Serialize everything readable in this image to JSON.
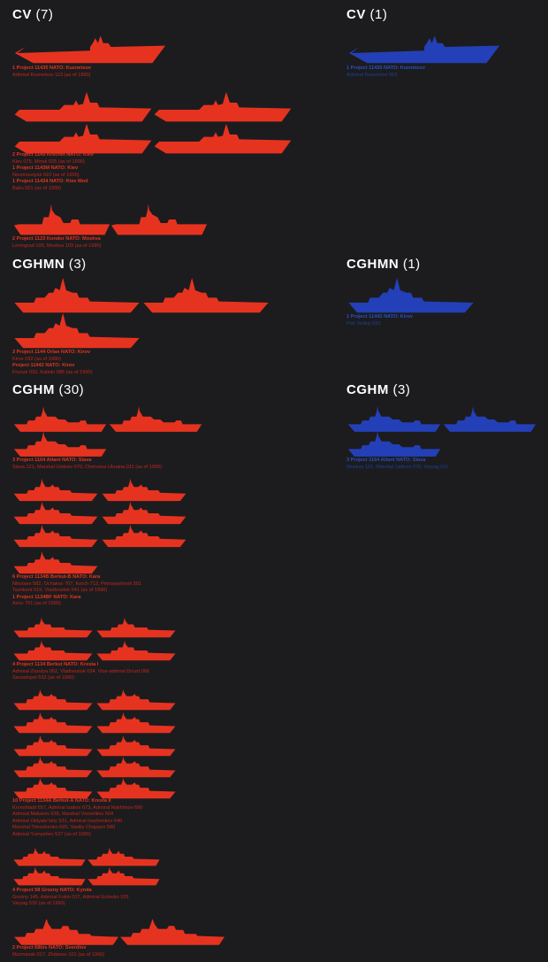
{
  "colors": {
    "background": "#1c1c1e",
    "russia_red": "#e63320",
    "ukraine_blue": "#2440b8",
    "heading": "#ffffff"
  },
  "sections": {
    "cv": {
      "red": {
        "code": "CV",
        "count": "(7)"
      },
      "blue": {
        "code": "CV",
        "count": "(1)"
      }
    },
    "cghmn": {
      "red": {
        "code": "CGHMN",
        "count": "(3)"
      },
      "blue": {
        "code": "CGHMN",
        "count": "(1)"
      }
    },
    "cghm": {
      "red": {
        "code": "CGHM",
        "count": "(30)"
      },
      "blue": {
        "code": "CGHM",
        "count": "(3)"
      }
    }
  },
  "captions": {
    "cv_kuznetsov_red": [
      "1 Project 11435 NATO: Kuznetsov",
      "Admiral Kuznetsov 113 (as of 1990)"
    ],
    "cv_kuznetsov_blue": [
      "1 Project 11435 NATO: Kuznetsov",
      "Admiral Kuznetsov 063"
    ],
    "cv_kiev": [
      "2 Project 1143 Krechet NATO: Kiev",
      "Kiev 075, Minsk 025 (as of 1990)",
      "1 Project 1143M NATO: Kiev",
      "Novorossiysk 010 (as of 1990)",
      "1 Project 11434 NATO: Kiev Mod",
      "Baku 001 (as of 1990)"
    ],
    "cv_moskva": [
      "2 Project 1123 Kondor NATO: Moskva",
      "Leningrad 106, Moskva 103 (as of 1990)"
    ],
    "cghmn_red": [
      "3 Project 1144 Orlan NATO: Kirov",
      "Kirov 092 (as of 1990)",
      "Project 11442 NATO: Kirov",
      "Frunze 010, Kalinin 085 (as of 1990)"
    ],
    "cghmn_blue": [
      "1 Project 11442 NATO: Kirov",
      "Petr Velikiy 099"
    ],
    "cghm_slava_red": [
      "3 Project 1164 Atlant NATO: Slava",
      "Slava 121, Marshal Ustinov 070, Chervona Ukraina 011 (as of 1990)"
    ],
    "cghm_slava_blue": [
      "3 Project 1164 Atlant NATO: Slava",
      "Moskva 121, Marshal Ustinov 070, Varyag 011"
    ],
    "cghm_kara": [
      "6 Project 1134B Berkut-B NATO: Kara",
      "Nikolaev 582, Ochakov 707, Kerch 713, Petropavlovsk 501",
      "Tashkent 519, Vladivostok 541 (as of 1990)",
      "1 Project 1134BF NATO: Kara",
      "Azov 701 (as of 1990)"
    ],
    "cghm_kresta1": [
      "4 Project 1134 Berkut NATO: Kresta I",
      "Admiral Zozulya 052, Vladivostok 034, Vice-admiral Drozd 066",
      "Sevastopol 532 (as of 1990)"
    ],
    "cghm_kresta2": [
      "10 Project 1134A Berkut-A NATO: Kresta II",
      "Kronshtadt 657, Admiral Isakov 673, Admiral Nakhimov 690",
      "Admiral Makarov 635, Marshal Voroshilov 504",
      "Admiral Oktyabr'skiy 531, Admiral Isachenkov 640",
      "Marshal Timoshenko 695, Vasiliy Chapaev 580",
      "Admiral Yumashev 527 (as of 1990)"
    ],
    "cghm_kynda": [
      "4 Project 58 Grozny NATO: Kynda",
      "Grozny 145, Admiral Fokin 017, Admiral Golovko 105",
      "Varyag 532 (as of 1990)"
    ],
    "cghm_sverdlov": [
      "2 Project 68bis NATO: Sverdlov",
      "Murmansk 017, Zhdanov 101 (as of 1990)"
    ]
  },
  "ship_groups": {
    "cv_kuznetsov_red": {
      "type": "carrier",
      "count": 1,
      "color": "red"
    },
    "cv_kuznetsov_blue": {
      "type": "carrier",
      "count": 1,
      "color": "blue"
    },
    "cv_kiev": {
      "type": "kiev",
      "count": 4,
      "color": "red"
    },
    "cv_moskva": {
      "type": "helicruiser",
      "count": 2,
      "color": "red"
    },
    "cghmn_red": {
      "type": "kirov",
      "count": 3,
      "color": "red"
    },
    "cghmn_blue": {
      "type": "kirov",
      "count": 1,
      "color": "blue"
    },
    "cghm_slava_red": {
      "type": "slava",
      "count": 3,
      "color": "red"
    },
    "cghm_slava_blue": {
      "type": "slava",
      "count": 3,
      "color": "blue"
    },
    "cghm_kara": {
      "type": "kara",
      "count": 7,
      "color": "red"
    },
    "cghm_kresta1": {
      "type": "kresta",
      "count": 4,
      "color": "red"
    },
    "cghm_kresta2": {
      "type": "kresta2",
      "count": 10,
      "color": "red"
    },
    "cghm_kynda": {
      "type": "kynda",
      "count": 4,
      "color": "red"
    },
    "cghm_sverdlov": {
      "type": "sverdlov",
      "count": 2,
      "color": "red"
    }
  }
}
